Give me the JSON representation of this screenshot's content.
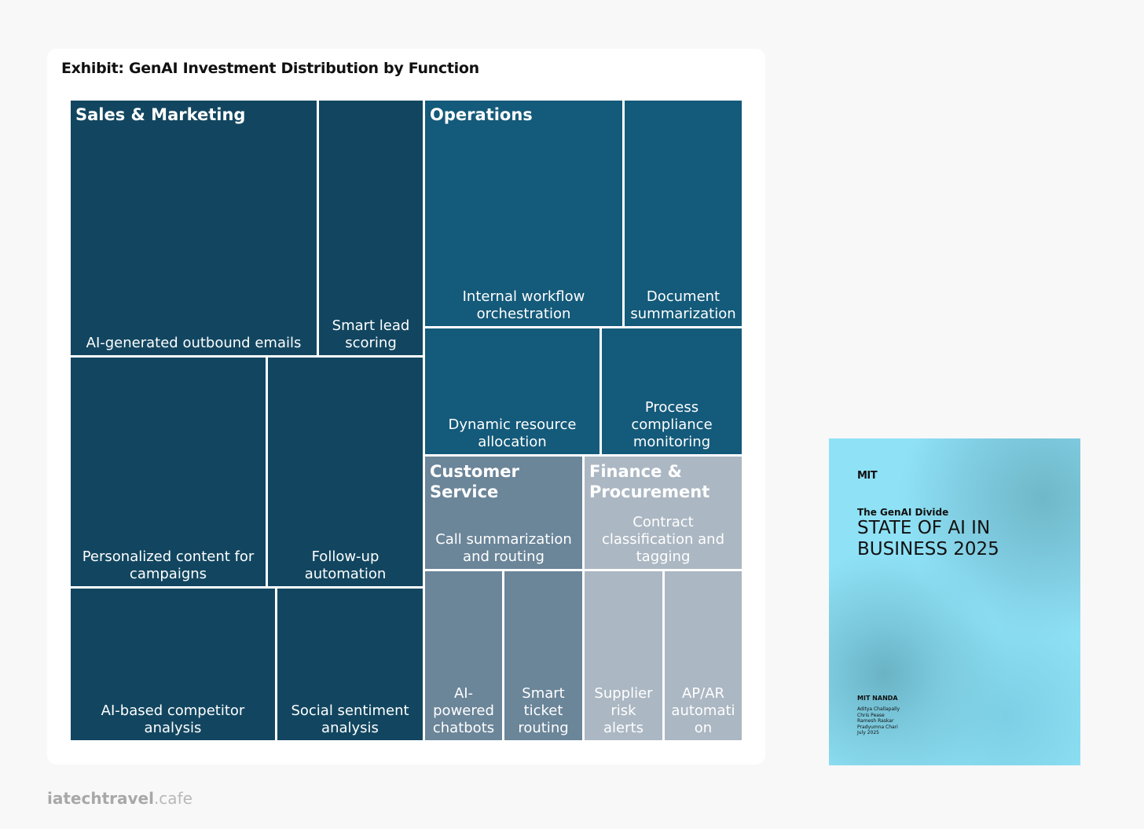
{
  "title": "Exhibit: GenAI Investment Distribution by Function",
  "groups": [
    {
      "name": "Sales & Marketing",
      "color": "#124660",
      "items": [
        "AI-generated outbound emails",
        "Smart lead scoring",
        "Personalized content for campaigns",
        "Follow-up automation",
        "AI-based competitor analysis",
        "Social sentiment analysis"
      ]
    },
    {
      "name": "Operations",
      "color": "#145a7a",
      "items": [
        "Internal workflow orchestration",
        "Document summarization",
        "Dynamic resource allocation",
        "Process compliance monitoring"
      ]
    },
    {
      "name": "Customer Service",
      "color": "#6b8599",
      "items": [
        "Call summarization and routing",
        "AI-powered chatbots",
        "Smart ticket routing"
      ]
    },
    {
      "name": "Finance & Procurement",
      "color": "#abb7c2",
      "items": [
        "Contract classification and tagging",
        "Supplier risk alerts",
        "AP/AR automation"
      ]
    }
  ],
  "cover": {
    "logo": "MIT",
    "kicker": "The GenAI Divide",
    "heading": "STATE OF AI IN BUSINESS 2025",
    "org": "MIT NANDA",
    "authors": [
      "Aditya Challapally",
      "Chris Pease",
      "Ramesh Raskar",
      "Pradyumna Chari"
    ],
    "date": "July 2025"
  },
  "footer": {
    "brand": "iatechtravel",
    "suffix": ".cafe"
  }
}
